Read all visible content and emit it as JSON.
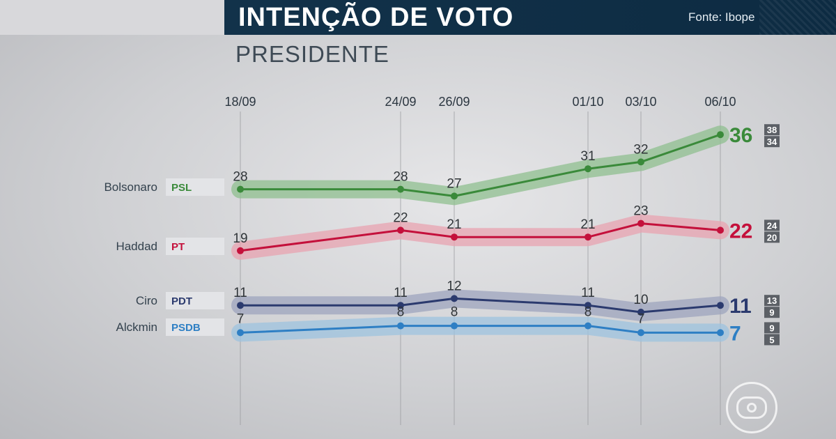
{
  "header": {
    "title": "INTENÇÃO DE VOTO",
    "source": "Fonte: Ibope",
    "subtitle": "PRESIDENTE"
  },
  "chart_data": {
    "type": "line",
    "title": "INTENÇÃO DE VOTO",
    "subtitle": "PRESIDENTE",
    "categories": [
      "18/09",
      "24/09",
      "26/09",
      "01/10",
      "03/10",
      "06/10"
    ],
    "ylim": [
      0,
      40
    ],
    "grid": false,
    "series": [
      {
        "name": "Bolsonaro",
        "party": "PSL",
        "color": "#3a8a3a",
        "band": "#8fbf8f",
        "values": [
          28,
          28,
          27,
          31,
          32,
          36
        ],
        "range": [
          "38",
          "34"
        ]
      },
      {
        "name": "Haddad",
        "party": "PT",
        "color": "#c4103b",
        "band": "#e8a3b0",
        "values": [
          19,
          22,
          21,
          21,
          23,
          22
        ],
        "range": [
          "24",
          "20"
        ]
      },
      {
        "name": "Ciro",
        "party": "PDT",
        "color": "#2b3a6e",
        "band": "#9ea4bd",
        "values": [
          11,
          11,
          12,
          11,
          10,
          11
        ],
        "range": [
          "13",
          "9"
        ]
      },
      {
        "name": "Alckmin",
        "party": "PSDB",
        "color": "#2e7fc4",
        "band": "#9ec3df",
        "values": [
          7,
          8,
          8,
          8,
          7,
          7
        ],
        "range": [
          "9",
          "5"
        ]
      }
    ]
  },
  "branding": {
    "logo": "globo-logo-icon"
  }
}
